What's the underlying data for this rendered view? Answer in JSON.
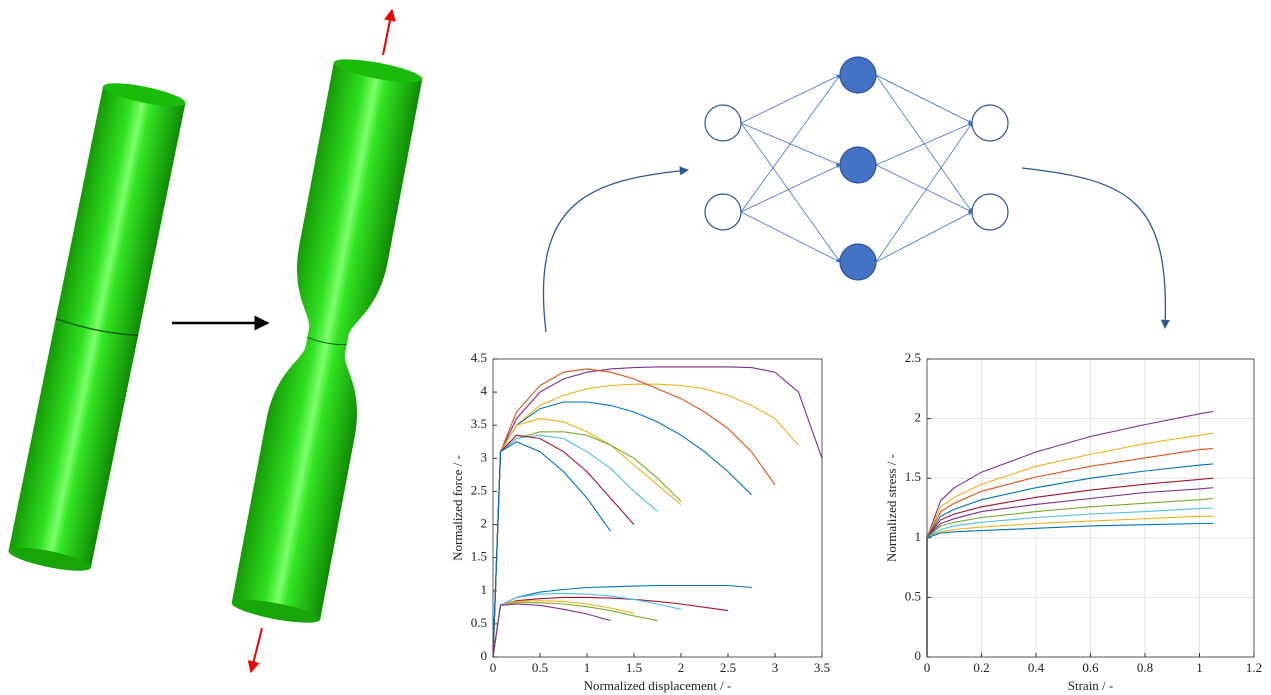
{
  "chart_data": [
    {
      "type": "line",
      "xlabel": "Normalized displacement / -",
      "ylabel": "Normalized force / -",
      "xlim": [
        0,
        3.5
      ],
      "ylim": [
        0,
        4.5
      ],
      "xticks": [
        0,
        0.5,
        1,
        1.5,
        2,
        2.5,
        3,
        3.5
      ],
      "yticks": [
        0,
        0.5,
        1,
        1.5,
        2,
        2.5,
        3,
        3.5,
        4,
        4.5
      ],
      "grid": false,
      "x": [
        0,
        0.08,
        0.25,
        0.5,
        0.75,
        1,
        1.25,
        1.5,
        1.75,
        2,
        2.25,
        2.5,
        2.75,
        3,
        3.25,
        3.5
      ],
      "series": [
        {
          "color": "#7e2f8e",
          "values": [
            0,
            3.1,
            3.6,
            4.0,
            4.2,
            4.3,
            4.35,
            4.37,
            4.38,
            4.38,
            4.38,
            4.38,
            4.37,
            4.3,
            4.0,
            3.0
          ]
        },
        {
          "color": "#edb120",
          "values": [
            0,
            3.1,
            3.5,
            3.8,
            3.95,
            4.05,
            4.1,
            4.12,
            4.12,
            4.1,
            4.05,
            3.95,
            3.8,
            3.6,
            3.2,
            null
          ]
        },
        {
          "color": "#d95319",
          "values": [
            0,
            3.1,
            3.7,
            4.1,
            4.3,
            4.35,
            4.3,
            4.2,
            4.05,
            3.9,
            3.7,
            3.45,
            3.1,
            2.6,
            null,
            null
          ]
        },
        {
          "color": "#0072bd",
          "values": [
            0,
            3.1,
            3.5,
            3.75,
            3.85,
            3.85,
            3.8,
            3.7,
            3.55,
            3.35,
            3.1,
            2.8,
            2.45,
            null,
            null,
            null
          ]
        },
        {
          "color": "#edb120",
          "values": [
            0,
            3.1,
            3.5,
            3.6,
            3.55,
            3.4,
            3.2,
            2.9,
            2.6,
            2.3,
            null,
            null,
            null,
            null,
            null,
            null
          ]
        },
        {
          "color": "#77ac30",
          "values": [
            0,
            3.1,
            3.3,
            3.4,
            3.4,
            3.35,
            3.2,
            3.0,
            2.7,
            2.35,
            null,
            null,
            null,
            null,
            null,
            null
          ]
        },
        {
          "color": "#4dbeee",
          "values": [
            0,
            3.1,
            3.3,
            3.35,
            3.3,
            3.1,
            2.85,
            2.5,
            2.2,
            null,
            null,
            null,
            null,
            null,
            null,
            null
          ]
        },
        {
          "color": "#a2142f",
          "values": [
            0,
            3.1,
            3.35,
            3.3,
            3.1,
            2.8,
            2.4,
            2.0,
            null,
            null,
            null,
            null,
            null,
            null,
            null,
            null
          ]
        },
        {
          "color": "#0072bd",
          "values": [
            0,
            3.1,
            3.25,
            3.1,
            2.8,
            2.4,
            1.9,
            null,
            null,
            null,
            null,
            null,
            null,
            null,
            null,
            null
          ]
        },
        {
          "color": "#0072bd",
          "values": [
            0,
            0.78,
            0.9,
            0.98,
            1.02,
            1.05,
            1.06,
            1.07,
            1.08,
            1.08,
            1.08,
            1.08,
            1.05,
            null,
            null,
            null
          ]
        },
        {
          "color": "#a2142f",
          "values": [
            0,
            0.78,
            0.85,
            0.88,
            0.9,
            0.9,
            0.89,
            0.87,
            0.84,
            0.8,
            0.75,
            0.7,
            null,
            null,
            null,
            null
          ]
        },
        {
          "color": "#4dbeee",
          "values": [
            0,
            0.78,
            0.9,
            0.95,
            0.96,
            0.95,
            0.92,
            0.87,
            0.8,
            0.72,
            null,
            null,
            null,
            null,
            null,
            null
          ]
        },
        {
          "color": "#77ac30",
          "values": [
            0,
            0.78,
            0.82,
            0.82,
            0.8,
            0.76,
            0.7,
            0.62,
            0.55,
            null,
            null,
            null,
            null,
            null,
            null,
            null
          ]
        },
        {
          "color": "#edb120",
          "values": [
            0,
            0.78,
            0.84,
            0.85,
            0.84,
            0.8,
            0.74,
            0.66,
            null,
            null,
            null,
            null,
            null,
            null,
            null,
            null
          ]
        },
        {
          "color": "#7e2f8e",
          "values": [
            0,
            0.78,
            0.8,
            0.78,
            0.72,
            0.65,
            0.55,
            null,
            null,
            null,
            null,
            null,
            null,
            null,
            null,
            null
          ]
        }
      ]
    },
    {
      "type": "line",
      "xlabel": "Strain / -",
      "ylabel": "Normalized stress / -",
      "xlim": [
        0,
        1.2
      ],
      "ylim": [
        0,
        2.5
      ],
      "xticks": [
        0,
        0.2,
        0.4,
        0.6,
        0.8,
        1,
        1.2
      ],
      "yticks": [
        0,
        0.5,
        1,
        1.5,
        2,
        2.5
      ],
      "grid": true,
      "x": [
        0,
        0,
        0.05,
        0.1,
        0.2,
        0.4,
        0.6,
        0.8,
        1,
        1.05
      ],
      "series": [
        {
          "color": "#7e2f8e",
          "values": [
            0,
            1,
            1.31,
            1.42,
            1.55,
            1.72,
            1.85,
            1.95,
            2.04,
            2.06
          ]
        },
        {
          "color": "#edb120",
          "values": [
            0,
            1,
            1.26,
            1.34,
            1.45,
            1.6,
            1.7,
            1.79,
            1.86,
            1.88
          ]
        },
        {
          "color": "#d95319",
          "values": [
            0,
            1,
            1.22,
            1.29,
            1.39,
            1.51,
            1.6,
            1.67,
            1.74,
            1.75
          ]
        },
        {
          "color": "#0072bd",
          "values": [
            0,
            1,
            1.18,
            1.24,
            1.32,
            1.42,
            1.5,
            1.56,
            1.61,
            1.62
          ]
        },
        {
          "color": "#a2142f",
          "values": [
            0,
            1,
            1.15,
            1.2,
            1.26,
            1.34,
            1.4,
            1.45,
            1.49,
            1.5
          ]
        },
        {
          "color": "#7e2f8e",
          "values": [
            0,
            1,
            1.12,
            1.16,
            1.22,
            1.28,
            1.33,
            1.38,
            1.41,
            1.42
          ]
        },
        {
          "color": "#77ac30",
          "values": [
            0,
            1,
            1.1,
            1.13,
            1.17,
            1.22,
            1.26,
            1.29,
            1.32,
            1.33
          ]
        },
        {
          "color": "#4dbeee",
          "values": [
            0,
            1,
            1.07,
            1.1,
            1.13,
            1.17,
            1.2,
            1.22,
            1.245,
            1.25
          ]
        },
        {
          "color": "#edb120",
          "values": [
            0,
            1,
            1.05,
            1.07,
            1.09,
            1.12,
            1.14,
            1.16,
            1.18,
            1.18
          ]
        },
        {
          "color": "#0072bd",
          "values": [
            0,
            1,
            1.04,
            1.05,
            1.06,
            1.08,
            1.1,
            1.11,
            1.12,
            1.12
          ]
        }
      ]
    }
  ]
}
